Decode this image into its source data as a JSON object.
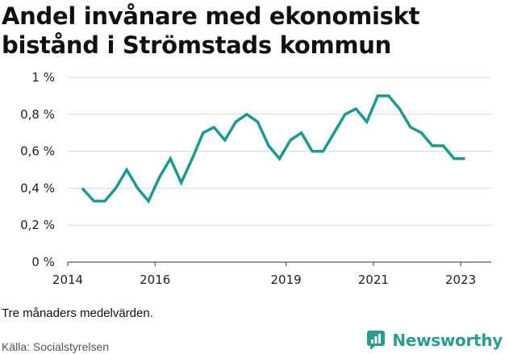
{
  "header": {
    "title": "Andel invånare med ekonomiskt bistånd i Strömstads kommun"
  },
  "footer": {
    "note": "Tre månaders medelvärden.",
    "source": "Källa: Socialstyrelsen",
    "brand": "Newsworthy"
  },
  "colors": {
    "line": "#1a9a91",
    "grid": "#d9d9d9",
    "brand": "#2a9d8f"
  },
  "icons": {
    "brand_logo": "newsworthy-chart-icon"
  },
  "chart_data": {
    "type": "line",
    "title": "Andel invånare med ekonomiskt bistånd i Strömstads kommun",
    "xlabel": "",
    "ylabel": "",
    "ylim": [
      0,
      1
    ],
    "xlim": [
      2014.0,
      2023.7
    ],
    "grid": true,
    "yticks": [
      0,
      0.2,
      0.4,
      0.6,
      0.8,
      1
    ],
    "ytick_labels": [
      "0 %",
      "0,2 %",
      "0,4 %",
      "0,6 %",
      "0,8 %",
      "1 %"
    ],
    "xticks": [
      2014,
      2016,
      2019,
      2021,
      2023
    ],
    "xtick_labels": [
      "2014",
      "2016",
      "2019",
      "2021",
      "2023"
    ],
    "series": [
      {
        "x": [
          2014.33,
          2014.6,
          2014.85,
          2015.1,
          2015.35,
          2015.6,
          2015.85,
          2016.1,
          2016.35,
          2016.6,
          2016.85,
          2017.1,
          2017.35,
          2017.6,
          2017.85,
          2018.1,
          2018.35,
          2018.6,
          2018.85,
          2019.1,
          2019.35,
          2019.6,
          2019.85,
          2020.1,
          2020.35,
          2020.6,
          2020.85,
          2021.1,
          2021.35,
          2021.6,
          2021.85,
          2022.1,
          2022.35,
          2022.6,
          2022.85,
          2023.1
        ],
        "values": [
          0.4,
          0.33,
          0.33,
          0.4,
          0.5,
          0.4,
          0.33,
          0.46,
          0.56,
          0.43,
          0.56,
          0.7,
          0.73,
          0.66,
          0.76,
          0.8,
          0.76,
          0.63,
          0.56,
          0.66,
          0.7,
          0.6,
          0.6,
          0.7,
          0.8,
          0.83,
          0.76,
          0.9,
          0.9,
          0.83,
          0.73,
          0.7,
          0.63,
          0.63,
          0.56,
          0.56
        ]
      }
    ]
  }
}
